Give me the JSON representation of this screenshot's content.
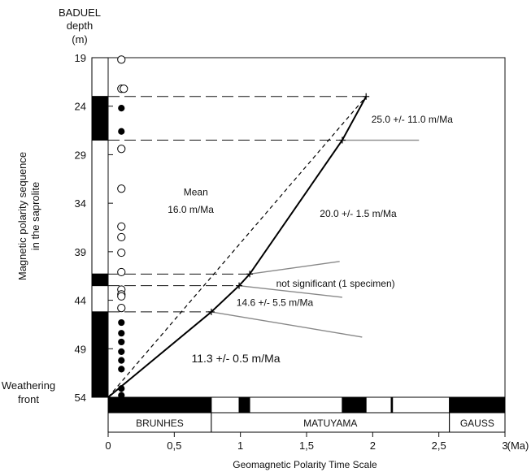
{
  "chart_data": {
    "type": "line",
    "header": {
      "site": "BADUEL",
      "depth_label": "depth",
      "depth_unit": "(m)"
    },
    "ylabel": "Magnetic polarity sequence in the saprolite",
    "ylabel_lines": [
      "Magnetic polarity sequence",
      "in the saprolite"
    ],
    "xlabel": "Geomagnetic Polarity Time Scale",
    "x_unit": "(Ma)",
    "xlim": [
      0,
      3
    ],
    "ylim": [
      54,
      19
    ],
    "x_ticks": [
      0,
      0.5,
      1,
      1.5,
      2,
      2.5,
      3
    ],
    "x_tick_labels": [
      "0",
      "0,5",
      "1",
      "1,5",
      "2",
      "2,5",
      "3"
    ],
    "y_ticks": [
      19,
      24,
      29,
      34,
      39,
      44,
      49,
      54
    ],
    "weathering_front": {
      "line1": "Weathering",
      "line2": "front"
    },
    "depth_polarity_column": [
      {
        "top": 19,
        "bottom": 23,
        "normal": false
      },
      {
        "top": 23,
        "bottom": 27.5,
        "normal": true
      },
      {
        "top": 27.5,
        "bottom": 41.3,
        "normal": false
      },
      {
        "top": 41.3,
        "bottom": 42.5,
        "normal": true
      },
      {
        "top": 42.5,
        "bottom": 45.2,
        "normal": false
      },
      {
        "top": 45.2,
        "bottom": 54,
        "normal": true
      }
    ],
    "specimens": [
      {
        "depth": 19.2,
        "normal": false
      },
      {
        "depth": 22.2,
        "normal": false
      },
      {
        "depth": 22.2,
        "normal": false
      },
      {
        "depth": 24.2,
        "normal": true
      },
      {
        "depth": 26.6,
        "normal": true
      },
      {
        "depth": 28.4,
        "normal": false
      },
      {
        "depth": 32.5,
        "normal": false
      },
      {
        "depth": 36.4,
        "normal": false
      },
      {
        "depth": 37.5,
        "normal": false
      },
      {
        "depth": 39.1,
        "normal": false
      },
      {
        "depth": 41.1,
        "normal": false
      },
      {
        "depth": 42.9,
        "normal": false
      },
      {
        "depth": 43.4,
        "normal": false
      },
      {
        "depth": 43.6,
        "normal": false
      },
      {
        "depth": 44.8,
        "normal": false
      },
      {
        "depth": 46.3,
        "normal": true
      },
      {
        "depth": 47.4,
        "normal": true
      },
      {
        "depth": 48.3,
        "normal": true
      },
      {
        "depth": 49.3,
        "normal": true
      },
      {
        "depth": 50.2,
        "normal": true
      },
      {
        "depth": 51.1,
        "normal": true
      },
      {
        "depth": 53.1,
        "normal": true
      },
      {
        "depth": 53.8,
        "normal": true
      }
    ],
    "age_polarity_bar": [
      {
        "start": 0,
        "end": 0.78,
        "normal": true
      },
      {
        "start": 0.78,
        "end": 0.99,
        "normal": false
      },
      {
        "start": 0.99,
        "end": 1.07,
        "normal": true
      },
      {
        "start": 1.07,
        "end": 1.77,
        "normal": false
      },
      {
        "start": 1.77,
        "end": 1.95,
        "normal": true
      },
      {
        "start": 1.95,
        "end": 2.14,
        "normal": false
      },
      {
        "start": 2.14,
        "end": 2.15,
        "normal": true
      },
      {
        "start": 2.15,
        "end": 2.58,
        "normal": false
      },
      {
        "start": 2.58,
        "end": 3.0,
        "normal": true
      }
    ],
    "chrons": [
      {
        "name": "BRUNHES",
        "start": 0,
        "end": 0.78
      },
      {
        "name": "MATUYAMA",
        "start": 0.78,
        "end": 2.58
      },
      {
        "name": "GAUSS",
        "start": 2.58,
        "end": 3.0
      }
    ],
    "series": [
      {
        "style": "solid",
        "points": [
          {
            "x": 0,
            "y": 54
          },
          {
            "x": 0.78,
            "y": 45.2
          },
          {
            "x": 0.99,
            "y": 42.5
          },
          {
            "x": 1.07,
            "y": 41.3
          },
          {
            "x": 1.77,
            "y": 27.5
          },
          {
            "x": 1.95,
            "y": 23
          }
        ]
      },
      {
        "style": "dashed",
        "points": [
          {
            "x": 0,
            "y": 54
          },
          {
            "x": 1.95,
            "y": 23
          }
        ]
      }
    ],
    "reference_lines": [
      {
        "depth": 23,
        "x_end": 1.95
      },
      {
        "depth": 27.5,
        "x_end": 1.77
      },
      {
        "depth": 41.3,
        "x_end": 1.07
      },
      {
        "depth": 42.5,
        "x_end": 0.99
      },
      {
        "depth": 45.2,
        "x_end": 0.78
      }
    ],
    "leader_lines": [
      {
        "from": {
          "x": 1.77,
          "y": 27.5
        },
        "to": {
          "x": 2.35,
          "y": 27.5
        }
      },
      {
        "from": {
          "x": 1.07,
          "y": 41.3
        },
        "to": {
          "x": 1.75,
          "y": 40.0
        }
      },
      {
        "from": {
          "x": 0.99,
          "y": 42.5
        },
        "to": {
          "x": 1.77,
          "y": 43.7
        }
      },
      {
        "from": {
          "x": 0.78,
          "y": 45.2
        },
        "to": {
          "x": 1.92,
          "y": 47.8
        }
      }
    ],
    "annotations": [
      {
        "text": "25.0 +/- 11.0 m/Ma",
        "x": 1.99,
        "y": 25.7
      },
      {
        "text": "Mean",
        "x": 0.57,
        "y": 33.2
      },
      {
        "text": "16.0 m/Ma",
        "x": 0.45,
        "y": 35.0
      },
      {
        "text": "20.0 +/- 1.5 m/Ma",
        "x": 1.6,
        "y": 35.4
      },
      {
        "text": "not significant (1 specimen)",
        "x": 1.27,
        "y": 42.6
      },
      {
        "text": "14.6 +/- 5.5 m/Ma",
        "x": 0.97,
        "y": 44.6
      },
      {
        "text": "11.3 +/- 0.5 m/Ma",
        "x": 0.63,
        "y": 50.4
      }
    ]
  }
}
